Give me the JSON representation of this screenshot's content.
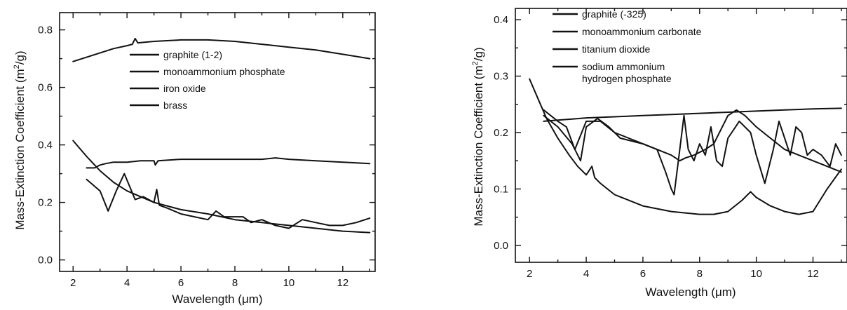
{
  "chart_data": [
    {
      "type": "line",
      "xlabel": "Wavelength (μm)",
      "ylabel": "Mass-Extinction Coefficient (m²/g)",
      "xlim": [
        1.5,
        13.2
      ],
      "ylim": [
        -0.04,
        0.86
      ],
      "xticks": [
        "2",
        "4",
        "6",
        "8",
        "10",
        "12"
      ],
      "yticks": [
        "0.0",
        "0.2",
        "0.4",
        "0.6",
        "0.8"
      ],
      "grid": false,
      "legend_position": "upper-center",
      "series": [
        {
          "name": "graphite (1-2)",
          "x": [
            2.0,
            2.5,
            3.0,
            3.5,
            4.0,
            4.2,
            4.3,
            4.4,
            5.0,
            6.0,
            7.0,
            8.0,
            9.0,
            10.0,
            11.0,
            12.0,
            13.0
          ],
          "y": [
            0.69,
            0.705,
            0.72,
            0.735,
            0.745,
            0.75,
            0.77,
            0.755,
            0.76,
            0.765,
            0.765,
            0.76,
            0.75,
            0.74,
            0.73,
            0.715,
            0.7
          ]
        },
        {
          "name": "monoammonium phosphate",
          "x": [
            2.5,
            2.8,
            3.0,
            3.2,
            3.5,
            4.0,
            4.5,
            5.0,
            5.05,
            5.15,
            6.0,
            7.0,
            8.0,
            9.0,
            9.5,
            10.0,
            11.0,
            12.0,
            13.0
          ],
          "y": [
            0.32,
            0.32,
            0.33,
            0.335,
            0.34,
            0.34,
            0.345,
            0.345,
            0.33,
            0.345,
            0.35,
            0.35,
            0.35,
            0.35,
            0.355,
            0.35,
            0.345,
            0.34,
            0.335
          ]
        },
        {
          "name": "iron oxide",
          "x": [
            2.5,
            3.0,
            3.3,
            3.6,
            3.9,
            4.3,
            4.6,
            5.0,
            5.1,
            5.2,
            5.5,
            6.0,
            6.5,
            7.0,
            7.3,
            7.6,
            8.0,
            8.3,
            8.6,
            9.0,
            9.5,
            10.0,
            10.5,
            11.0,
            11.5,
            12.0,
            12.5,
            13.0
          ],
          "y": [
            0.28,
            0.24,
            0.17,
            0.24,
            0.3,
            0.21,
            0.22,
            0.2,
            0.245,
            0.19,
            0.18,
            0.16,
            0.15,
            0.14,
            0.17,
            0.15,
            0.15,
            0.15,
            0.13,
            0.14,
            0.12,
            0.11,
            0.14,
            0.13,
            0.12,
            0.12,
            0.13,
            0.145
          ]
        },
        {
          "name": "brass",
          "x": [
            2.0,
            2.5,
            3.0,
            3.5,
            4.0,
            5.0,
            6.0,
            7.0,
            8.0,
            9.0,
            10.0,
            11.0,
            12.0,
            13.0
          ],
          "y": [
            0.415,
            0.36,
            0.31,
            0.27,
            0.24,
            0.2,
            0.175,
            0.16,
            0.14,
            0.13,
            0.12,
            0.11,
            0.1,
            0.095
          ]
        }
      ]
    },
    {
      "type": "line",
      "xlabel": "Wavelength (μm)",
      "ylabel": "Mass-Extinction Coefficient (m²/g)",
      "xlim": [
        1.5,
        13.2
      ],
      "ylim": [
        -0.03,
        0.42
      ],
      "xticks": [
        "2",
        "4",
        "6",
        "8",
        "10",
        "12"
      ],
      "yticks": [
        "0.0",
        "0.1",
        "0.2",
        "0.3",
        "0.4"
      ],
      "grid": false,
      "legend_position": "top-left",
      "series": [
        {
          "name": "graphite (-325)",
          "x": [
            2.5,
            3.0,
            3.5,
            4.0,
            5.0,
            6.0,
            7.0,
            8.0,
            9.0,
            10.0,
            11.0,
            12.0,
            13.0
          ],
          "y": [
            0.22,
            0.222,
            0.224,
            0.226,
            0.228,
            0.23,
            0.232,
            0.234,
            0.236,
            0.238,
            0.24,
            0.242,
            0.243
          ]
        },
        {
          "name": "monoammonium carbonate",
          "x": [
            2.5,
            3.0,
            3.3,
            3.6,
            4.0,
            4.5,
            5.0,
            5.5,
            6.0,
            6.5,
            7.0,
            7.3,
            7.5,
            7.8,
            8.2,
            8.5,
            9.0,
            9.3,
            9.6,
            10.0,
            10.5,
            11.0,
            11.5,
            12.0,
            12.5,
            13.0
          ],
          "y": [
            0.24,
            0.22,
            0.21,
            0.17,
            0.22,
            0.22,
            0.2,
            0.19,
            0.18,
            0.17,
            0.16,
            0.15,
            0.155,
            0.16,
            0.17,
            0.18,
            0.23,
            0.24,
            0.23,
            0.21,
            0.19,
            0.17,
            0.16,
            0.15,
            0.14,
            0.13
          ]
        },
        {
          "name": "titanium dioxide",
          "x": [
            2.0,
            2.3,
            2.6,
            3.0,
            3.4,
            3.7,
            4.0,
            4.2,
            4.3,
            4.5,
            5.0,
            6.0,
            7.0,
            8.0,
            8.5,
            9.0,
            9.5,
            9.8,
            10.0,
            10.5,
            11.0,
            11.5,
            12.0,
            12.5,
            13.0
          ],
          "y": [
            0.295,
            0.26,
            0.225,
            0.19,
            0.16,
            0.14,
            0.125,
            0.14,
            0.12,
            0.11,
            0.09,
            0.07,
            0.06,
            0.055,
            0.055,
            0.06,
            0.08,
            0.095,
            0.085,
            0.07,
            0.06,
            0.055,
            0.06,
            0.1,
            0.135
          ]
        },
        {
          "name": "sodium ammonium hydrogen phosphate",
          "x": [
            2.5,
            3.0,
            3.5,
            3.8,
            4.0,
            4.4,
            4.8,
            5.2,
            5.6,
            6.0,
            6.5,
            6.8,
            7.0,
            7.1,
            7.25,
            7.45,
            7.6,
            7.8,
            8.0,
            8.2,
            8.4,
            8.6,
            8.8,
            9.0,
            9.4,
            9.8,
            10.0,
            10.3,
            10.6,
            10.8,
            11.0,
            11.2,
            11.4,
            11.6,
            11.8,
            12.0,
            12.3,
            12.6,
            12.8,
            13.0
          ],
          "y": [
            0.23,
            0.21,
            0.18,
            0.15,
            0.21,
            0.225,
            0.21,
            0.19,
            0.185,
            0.18,
            0.17,
            0.13,
            0.1,
            0.09,
            0.15,
            0.23,
            0.17,
            0.15,
            0.18,
            0.16,
            0.21,
            0.15,
            0.14,
            0.19,
            0.22,
            0.2,
            0.16,
            0.11,
            0.17,
            0.22,
            0.19,
            0.16,
            0.21,
            0.2,
            0.16,
            0.17,
            0.16,
            0.14,
            0.18,
            0.16
          ]
        }
      ]
    }
  ]
}
